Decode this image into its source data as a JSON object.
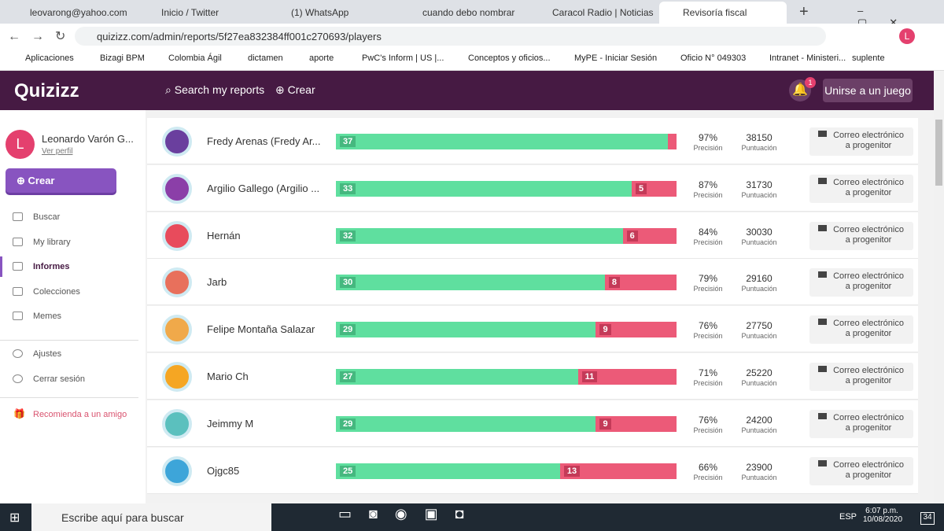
{
  "browser": {
    "tabs": [
      "leovarong@yahoo.com",
      "Inicio / Twitter",
      "(1) WhatsApp",
      "cuando debo nombrar",
      "Caracol Radio | Noticias",
      "Revisoría fiscal"
    ],
    "url": "quizizz.com/admin/reports/5f27ea832384ff001c270693/players",
    "bookmarks": [
      "Aplicaciones",
      "Bizagi BPM",
      "Colombia Ágil",
      "dictamen",
      "aporte",
      "PwC's Inform | US |...",
      "Conceptos y oficios...",
      "MyPE - Iniciar Sesión",
      "Oficio N° 049303",
      "Intranet - Ministeri...",
      "suplente"
    ],
    "profile_initial": "L"
  },
  "header": {
    "logo": "Quizizz",
    "search": "Search my reports",
    "create": "Crear",
    "notifications": "1",
    "join": "Unirse a un juego"
  },
  "sidebar": {
    "initial": "L",
    "user": "Leonardo Varón G...",
    "profile_link": "Ver perfil",
    "create": "Crear",
    "nav": [
      "Buscar",
      "My library",
      "Informes",
      "Colecciones",
      "Memes"
    ],
    "settings": [
      "Ajustes",
      "Cerrar sesión"
    ],
    "refer": "Recomienda a un amigo"
  },
  "players": {
    "accuracy_label": "Precisión",
    "score_label": "Puntuación",
    "email": "Correo electrónico a progenitor",
    "rows": [
      {
        "name": "Fredy Arenas (Fredy Ar...",
        "correct": 37,
        "incorrect": 1,
        "accuracy": "97%",
        "score": 38150
      },
      {
        "name": "Argilio Gallego (Argilio ...",
        "correct": 33,
        "incorrect": 5,
        "accuracy": "87%",
        "score": 31730
      },
      {
        "name": "Hernán",
        "correct": 32,
        "incorrect": 6,
        "accuracy": "84%",
        "score": 30030
      },
      {
        "name": "Jarb",
        "correct": 30,
        "incorrect": 8,
        "accuracy": "79%",
        "score": 29160
      },
      {
        "name": "Felipe Montaña Salazar",
        "correct": 29,
        "incorrect": 9,
        "accuracy": "76%",
        "score": 27750
      },
      {
        "name": "Mario Ch",
        "correct": 27,
        "incorrect": 11,
        "accuracy": "71%",
        "score": 25220
      },
      {
        "name": "Jeimmy M",
        "correct": 29,
        "incorrect": 9,
        "accuracy": "76%",
        "score": 24200
      },
      {
        "name": "Ojgc85",
        "correct": 25,
        "incorrect": 13,
        "accuracy": "66%",
        "score": 23900
      }
    ]
  },
  "taskbar": {
    "search": "Escribe aquí para buscar",
    "language": "ESP",
    "time": "6:07 p.m.",
    "date": "10/08/2020",
    "notifications": "34"
  }
}
